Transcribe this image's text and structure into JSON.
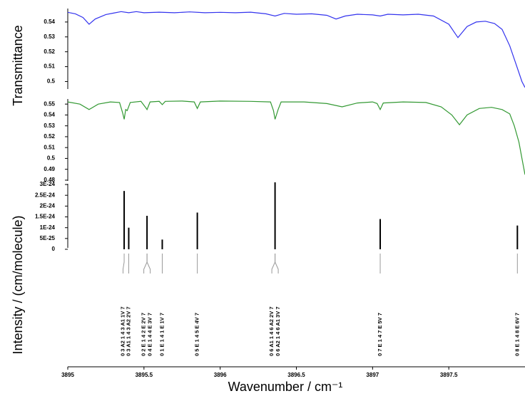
{
  "chart_data": [
    {
      "type": "line",
      "ylabel": "Transmittance",
      "x": [
        3895.0,
        3895.05,
        3895.1,
        3895.14,
        3895.18,
        3895.25,
        3895.3,
        3895.35,
        3895.4,
        3895.45,
        3895.5,
        3895.6,
        3895.7,
        3895.8,
        3895.9,
        3896.0,
        3896.1,
        3896.2,
        3896.3,
        3896.36,
        3896.42,
        3896.5,
        3896.6,
        3896.7,
        3896.76,
        3896.82,
        3896.9,
        3897.0,
        3897.05,
        3897.1,
        3897.2,
        3897.3,
        3897.4,
        3897.5,
        3897.56,
        3897.62,
        3897.68,
        3897.74,
        3897.8,
        3897.85,
        3897.9,
        3897.94,
        3897.98,
        3898.0
      ],
      "series": [
        {
          "color": "#3333ee",
          "values": [
            0.5465,
            0.5455,
            0.543,
            0.5385,
            0.542,
            0.545,
            0.546,
            0.547,
            0.5462,
            0.547,
            0.5462,
            0.5466,
            0.5462,
            0.5468,
            0.5462,
            0.5465,
            0.5462,
            0.5466,
            0.5455,
            0.544,
            0.5458,
            0.5452,
            0.5455,
            0.5445,
            0.542,
            0.544,
            0.5452,
            0.5448,
            0.544,
            0.5452,
            0.5448,
            0.5452,
            0.544,
            0.5385,
            0.5295,
            0.537,
            0.54,
            0.5405,
            0.539,
            0.535,
            0.524,
            0.512,
            0.5,
            0.496
          ]
        }
      ],
      "xlim": [
        3895,
        3898
      ],
      "ylim": [
        0.494,
        0.55
      ],
      "yticks": [
        0.54,
        0.53,
        0.52,
        0.51,
        0.5
      ]
    },
    {
      "type": "line",
      "x": [
        3895.0,
        3895.08,
        3895.14,
        3895.2,
        3895.28,
        3895.34,
        3895.36,
        3895.37,
        3895.38,
        3895.39,
        3895.41,
        3895.48,
        3895.51,
        3895.52,
        3895.54,
        3895.6,
        3895.62,
        3895.64,
        3895.75,
        3895.83,
        3895.85,
        3895.87,
        3896.0,
        3896.2,
        3896.33,
        3896.35,
        3896.36,
        3896.38,
        3896.4,
        3896.55,
        3896.7,
        3896.8,
        3896.9,
        3897.0,
        3897.03,
        3897.05,
        3897.07,
        3897.2,
        3897.35,
        3897.45,
        3897.52,
        3897.57,
        3897.62,
        3897.7,
        3897.78,
        3897.85,
        3897.9,
        3897.93,
        3897.96,
        3897.98,
        3898.0
      ],
      "series": [
        {
          "color": "#339933",
          "values": [
            0.552,
            0.55,
            0.545,
            0.55,
            0.552,
            0.5515,
            0.542,
            0.536,
            0.545,
            0.544,
            0.5515,
            0.5525,
            0.547,
            0.545,
            0.552,
            0.5525,
            0.5495,
            0.5525,
            0.5528,
            0.552,
            0.546,
            0.552,
            0.5528,
            0.5525,
            0.552,
            0.544,
            0.536,
            0.545,
            0.552,
            0.552,
            0.5505,
            0.5475,
            0.551,
            0.552,
            0.5505,
            0.545,
            0.551,
            0.552,
            0.5515,
            0.5475,
            0.54,
            0.531,
            0.54,
            0.546,
            0.547,
            0.545,
            0.541,
            0.53,
            0.515,
            0.5,
            0.485
          ]
        }
      ],
      "xlim": [
        3895,
        3898
      ],
      "ylim": [
        0.478,
        0.556
      ],
      "yticks": [
        0.55,
        0.54,
        0.53,
        0.52,
        0.51,
        0.5,
        0.49,
        0.48
      ]
    },
    {
      "type": "stem",
      "ylabel": "Intensity / (cm/molecule)",
      "xlabel": "Wavenumber / cm⁻¹",
      "x": [
        3895.37,
        3895.4,
        3895.52,
        3895.62,
        3895.85,
        3896.36,
        3897.05,
        3897.95
      ],
      "values": [
        2.7e-24,
        1e-24,
        1.55e-24,
        4.5e-25,
        1.7e-24,
        3.1e-24,
        1.4e-24,
        1.1e-24
      ],
      "assignments": [
        [
          "0 3 A2 1 4 3 A1 1V 7"
        ],
        [
          "0 3 A1 1 4 3 A2 2V 7"
        ],
        [
          "0 2 E 1 4 2 E 2V 7",
          "0 4 E 1 4 4 E 3V 7"
        ],
        [
          "0 1 E 1 4 1 E 1V 7"
        ],
        [
          "0 5 E 1 4 5 E 4V 7"
        ],
        [
          "0 6 A1 1 4 6 A2 2V 7",
          "0 6 A2 1 4 6 A1 3V 7"
        ],
        [
          "0 7 E 1 4 7 E 5V 7"
        ],
        [
          "0 8 E 1 4 8 E 6V 7"
        ]
      ],
      "color": "#000000",
      "xlim": [
        3895,
        3898
      ],
      "ylim": [
        0,
        3.1e-24
      ],
      "xticks": [
        3895,
        3895.5,
        3896,
        3896.5,
        3897,
        3897.5
      ],
      "yticks": [
        {
          "value": 3e-24,
          "label": "3E-24"
        },
        {
          "value": 2.5e-24,
          "label": "2.5E-24"
        },
        {
          "value": 2e-24,
          "label": "2E-24"
        },
        {
          "value": 1.5e-24,
          "label": "1.5E-24"
        },
        {
          "value": 1e-24,
          "label": "1E-24"
        },
        {
          "value": 5e-25,
          "label": "5E-25"
        },
        0
      ]
    }
  ]
}
